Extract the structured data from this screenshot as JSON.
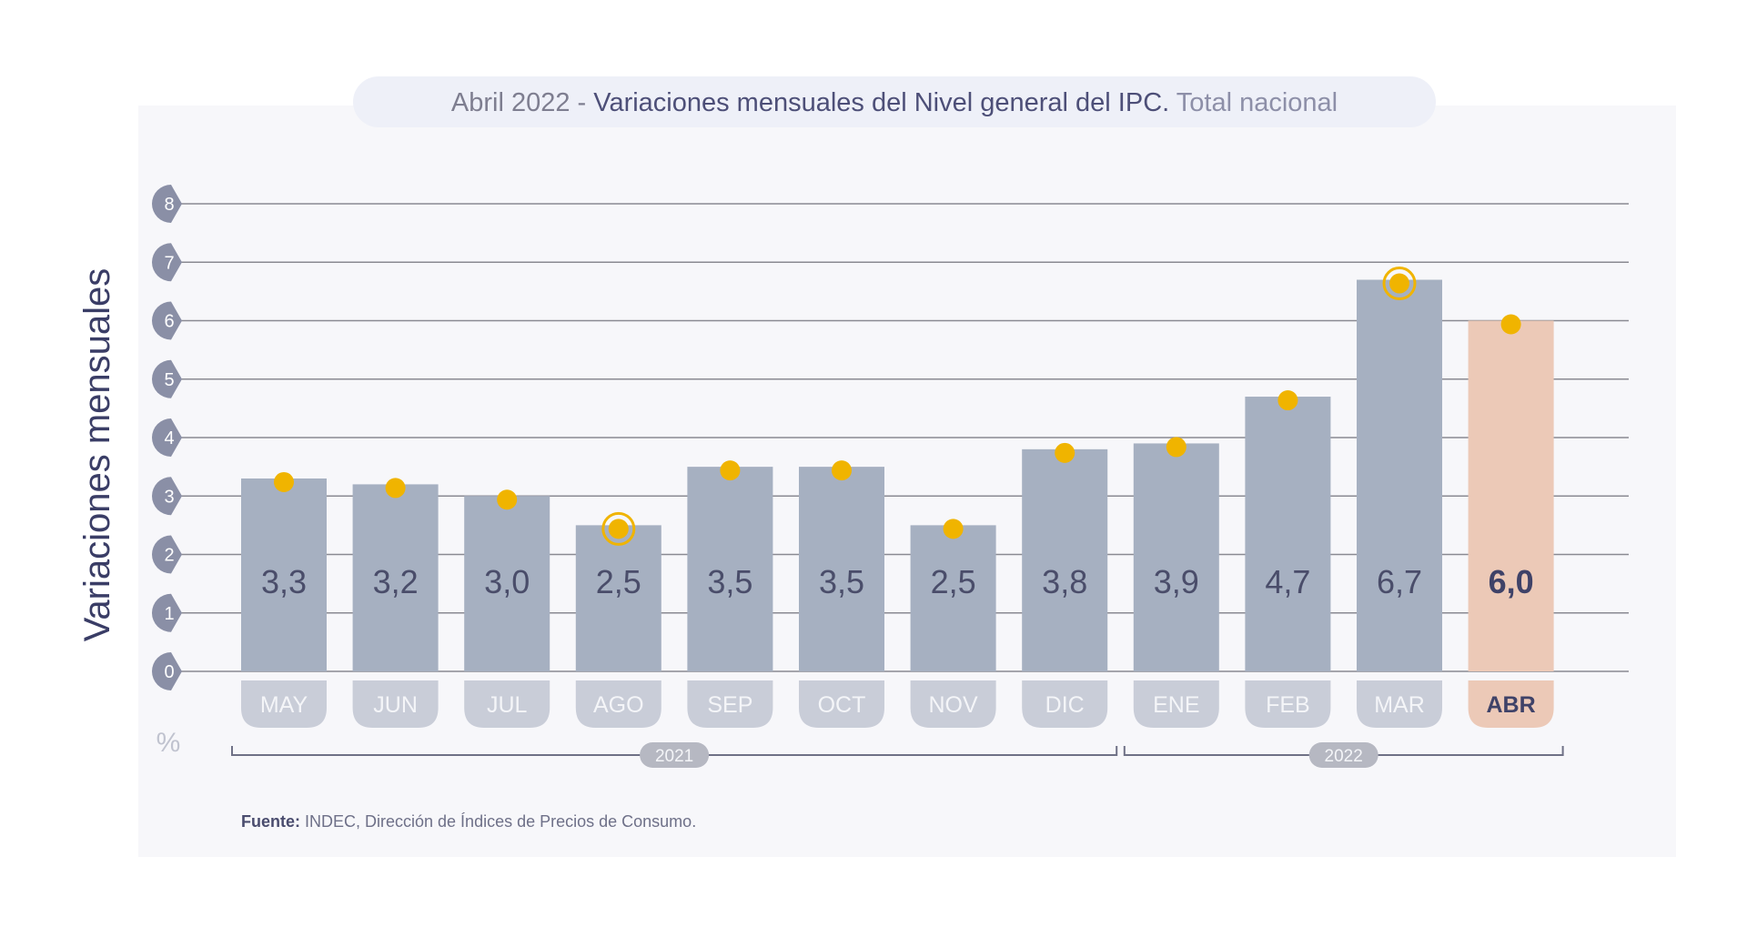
{
  "title": {
    "prefix": "Abril 2022 - ",
    "main": "Variaciones mensuales del Nivel general del IPC.",
    "suffix": " Total nacional"
  },
  "source": {
    "label": "Fuente:",
    "text": " INDEC, Dirección de Índices de Precios de Consumo."
  },
  "colors": {
    "bar": "#a6b0c1",
    "bar_highlight": "#ecc9b7",
    "dot": "#f0b400",
    "panel": "#f7f7fa",
    "title_pill": "#eef0f8",
    "grid": "#8a8a92",
    "tick_bubble": "#8a8fa6",
    "bar_label": "#4a4d6a",
    "highlight_label": "#3f4268",
    "month_tab": "#c9cdd8",
    "month_text": "#f4f5f8"
  },
  "chart_data": {
    "type": "bar",
    "ylabel": "Variaciones mensuales",
    "unit_label": "%",
    "ylim": [
      0,
      8
    ],
    "yticks": [
      0,
      1,
      2,
      3,
      4,
      5,
      6,
      7,
      8
    ],
    "grid": true,
    "categories": [
      "MAY",
      "JUN",
      "JUL",
      "AGO",
      "SEP",
      "OCT",
      "NOV",
      "DIC",
      "ENE",
      "FEB",
      "MAR",
      "ABR"
    ],
    "values": [
      3.3,
      3.2,
      3.0,
      2.5,
      3.5,
      3.5,
      2.5,
      3.8,
      3.9,
      4.7,
      6.7,
      6.0
    ],
    "value_labels": [
      "3,3",
      "3,2",
      "3,0",
      "2,5",
      "3,5",
      "3,5",
      "2,5",
      "3,8",
      "3,9",
      "4,7",
      "6,7",
      "6,0"
    ],
    "highlight_index": 11,
    "ringed_indices": [
      3,
      10
    ],
    "year_groups": [
      {
        "label": "2021",
        "start": 0,
        "end": 7
      },
      {
        "label": "2022",
        "start": 8,
        "end": 11
      }
    ]
  }
}
